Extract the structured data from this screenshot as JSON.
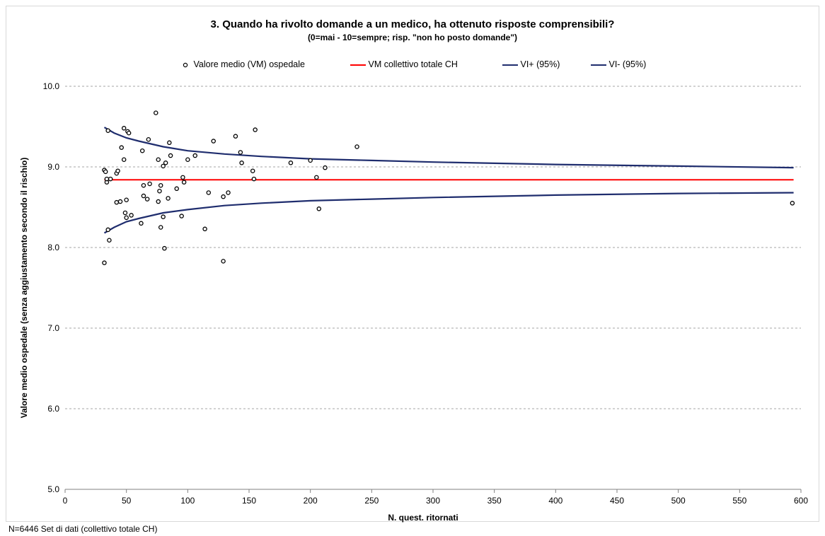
{
  "chart_data": {
    "type": "scatter",
    "title": "3. Quando ha rivolto domande a un medico, ha ottenuto risposte comprensibili?",
    "subtitle": "(0=mai - 10=sempre; risp. \"non ho posto domande\")",
    "xlabel": "N. quest. ritornati",
    "ylabel": "Valore medio ospedale (senza aggiustamento secondo il rischio)",
    "xlim": [
      0,
      600
    ],
    "ylim": [
      5.0,
      10.0
    ],
    "x_ticks": [
      "0",
      "50",
      "100",
      "150",
      "200",
      "250",
      "300",
      "350",
      "400",
      "450",
      "500",
      "550",
      "600"
    ],
    "y_ticks": [
      "5.0",
      "6.0",
      "7.0",
      "8.0",
      "9.0",
      "10.0"
    ],
    "grid": "horizontal dashed",
    "legend_position": "top",
    "legend": [
      {
        "label": "Valore medio (VM) ospedale",
        "style": "marker",
        "color": "#000000"
      },
      {
        "label": "VM collettivo totale CH",
        "style": "line",
        "color": "#ff0000"
      },
      {
        "label": "VI+ (95%)",
        "style": "line",
        "color": "#1f2d6e"
      },
      {
        "label": "VI- (95%)",
        "style": "line",
        "color": "#1f2d6e"
      }
    ],
    "series": [
      {
        "name": "Valore medio (VM) ospedale",
        "points": [
          [
            32,
            7.81
          ],
          [
            32,
            8.96
          ],
          [
            33,
            8.94
          ],
          [
            34,
            8.81
          ],
          [
            34,
            8.85
          ],
          [
            35,
            8.22
          ],
          [
            35,
            9.45
          ],
          [
            36,
            8.09
          ],
          [
            37,
            8.85
          ],
          [
            42,
            8.56
          ],
          [
            42,
            8.92
          ],
          [
            43,
            8.95
          ],
          [
            45,
            8.57
          ],
          [
            46,
            9.24
          ],
          [
            48,
            9.09
          ],
          [
            48,
            9.48
          ],
          [
            49,
            8.43
          ],
          [
            50,
            8.37
          ],
          [
            50,
            8.59
          ],
          [
            51,
            9.44
          ],
          [
            52,
            9.42
          ],
          [
            54,
            8.4
          ],
          [
            62,
            8.3
          ],
          [
            63,
            9.2
          ],
          [
            64,
            8.64
          ],
          [
            64,
            8.77
          ],
          [
            67,
            8.6
          ],
          [
            68,
            9.34
          ],
          [
            69,
            8.79
          ],
          [
            74,
            9.67
          ],
          [
            76,
            8.57
          ],
          [
            76,
            9.09
          ],
          [
            77,
            8.7
          ],
          [
            78,
            8.25
          ],
          [
            78,
            8.77
          ],
          [
            80,
            8.38
          ],
          [
            80,
            9.01
          ],
          [
            81,
            7.99
          ],
          [
            82,
            9.05
          ],
          [
            84,
            8.61
          ],
          [
            85,
            9.3
          ],
          [
            86,
            9.14
          ],
          [
            91,
            8.73
          ],
          [
            95,
            8.39
          ],
          [
            96,
            8.87
          ],
          [
            97,
            8.81
          ],
          [
            100,
            9.09
          ],
          [
            106,
            9.14
          ],
          [
            114,
            8.23
          ],
          [
            117,
            8.68
          ],
          [
            121,
            9.32
          ],
          [
            129,
            8.63
          ],
          [
            129,
            7.83
          ],
          [
            133,
            8.68
          ],
          [
            139,
            9.38
          ],
          [
            143,
            9.18
          ],
          [
            144,
            9.05
          ],
          [
            153,
            8.95
          ],
          [
            154,
            8.85
          ],
          [
            155,
            9.46
          ],
          [
            184,
            9.05
          ],
          [
            200,
            9.08
          ],
          [
            205,
            8.87
          ],
          [
            207,
            8.48
          ],
          [
            212,
            8.99
          ],
          [
            238,
            9.25
          ],
          [
            593,
            8.55
          ]
        ]
      },
      {
        "name": "VM collettivo totale CH",
        "value": 8.84
      },
      {
        "name": "VI+ (95%)",
        "points": [
          [
            32,
            9.49
          ],
          [
            40,
            9.42
          ],
          [
            50,
            9.36
          ],
          [
            60,
            9.32
          ],
          [
            80,
            9.25
          ],
          [
            100,
            9.2
          ],
          [
            130,
            9.16
          ],
          [
            160,
            9.13
          ],
          [
            200,
            9.1
          ],
          [
            250,
            9.08
          ],
          [
            300,
            9.06
          ],
          [
            400,
            9.03
          ],
          [
            500,
            9.01
          ],
          [
            594,
            8.99
          ]
        ]
      },
      {
        "name": "VI- (95%)",
        "points": [
          [
            32,
            8.18
          ],
          [
            40,
            8.25
          ],
          [
            50,
            8.32
          ],
          [
            60,
            8.36
          ],
          [
            80,
            8.43
          ],
          [
            100,
            8.47
          ],
          [
            130,
            8.52
          ],
          [
            160,
            8.55
          ],
          [
            200,
            8.58
          ],
          [
            250,
            8.6
          ],
          [
            300,
            8.62
          ],
          [
            400,
            8.65
          ],
          [
            500,
            8.67
          ],
          [
            594,
            8.68
          ]
        ]
      }
    ]
  },
  "footnote": "N=6446 Set di dati (collettivo totale CH)"
}
